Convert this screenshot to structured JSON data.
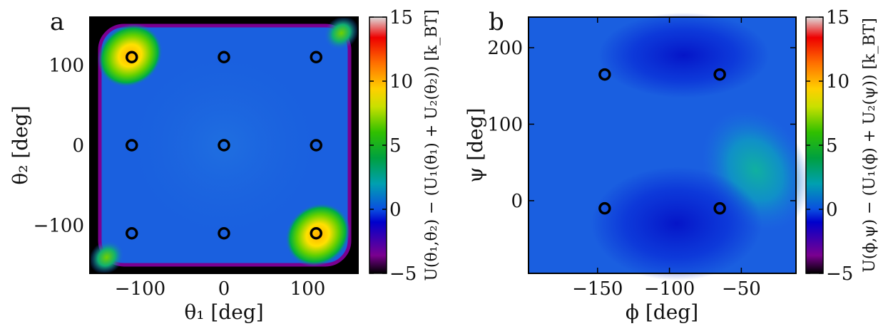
{
  "chart_data": [
    {
      "type": "heatmap",
      "panel_label": "a",
      "xlabel": "θ₁ [deg]",
      "ylabel": "θ₂ [deg]",
      "xlim": [
        -160,
        160
      ],
      "ylim": [
        -160,
        160
      ],
      "xticks": [
        -100,
        0,
        100
      ],
      "yticks": [
        -100,
        0,
        100
      ],
      "xtick_labels": [
        "−100",
        "0",
        "100"
      ],
      "ytick_labels": [
        "−100",
        "0",
        "100"
      ],
      "colorbar": {
        "label": "U(θ₁,θ₂) − (U₁(θ₁) + U₂(θ₂)) [k_BT]",
        "range": [
          -5,
          15
        ],
        "ticks": [
          -5,
          0,
          5,
          10,
          15
        ],
        "tick_labels": [
          "−5",
          "0",
          "5",
          "10",
          "15"
        ]
      },
      "markers": [
        {
          "x": -110,
          "y": 110
        },
        {
          "x": 0,
          "y": 110
        },
        {
          "x": 110,
          "y": 110
        },
        {
          "x": -110,
          "y": 0
        },
        {
          "x": 0,
          "y": 0
        },
        {
          "x": 110,
          "y": 0
        },
        {
          "x": -110,
          "y": -110
        },
        {
          "x": 0,
          "y": -110
        },
        {
          "x": 110,
          "y": -110
        }
      ],
      "features": [
        {
          "x": -112,
          "y": 112,
          "value": 13
        },
        {
          "x": 112,
          "y": -112,
          "value": 13
        },
        {
          "x": 140,
          "y": 140,
          "value": 4
        },
        {
          "x": -140,
          "y": -140,
          "value": 4
        }
      ],
      "background_value": 0.5
    },
    {
      "type": "heatmap",
      "panel_label": "b",
      "xlabel": "ϕ [deg]",
      "ylabel": "ψ [deg]",
      "xlim": [
        -198,
        -12
      ],
      "ylim": [
        -95,
        240
      ],
      "xticks": [
        -150,
        -100,
        -50
      ],
      "yticks": [
        0,
        100,
        200
      ],
      "xtick_labels": [
        "−150",
        "−100",
        "−50"
      ],
      "ytick_labels": [
        "0",
        "100",
        "200"
      ],
      "colorbar": {
        "label": "U(ϕ,ψ) − (U₁(ϕ) + U₂(ψ)) [k_BT]",
        "range": [
          -5,
          15
        ],
        "ticks": [
          -5,
          0,
          5,
          10,
          15
        ],
        "tick_labels": [
          "−5",
          "0",
          "5",
          "10",
          "15"
        ]
      },
      "markers": [
        {
          "x": -145,
          "y": 165
        },
        {
          "x": -65,
          "y": 165
        },
        {
          "x": -145,
          "y": -10
        },
        {
          "x": -65,
          "y": -10
        }
      ],
      "features": [
        {
          "x": -40,
          "y": 40,
          "value": 2.5
        },
        {
          "x": -95,
          "y": -30,
          "value": -1.5
        },
        {
          "x": -90,
          "y": 190,
          "value": -1.2
        }
      ],
      "background_value": 0.3
    }
  ]
}
